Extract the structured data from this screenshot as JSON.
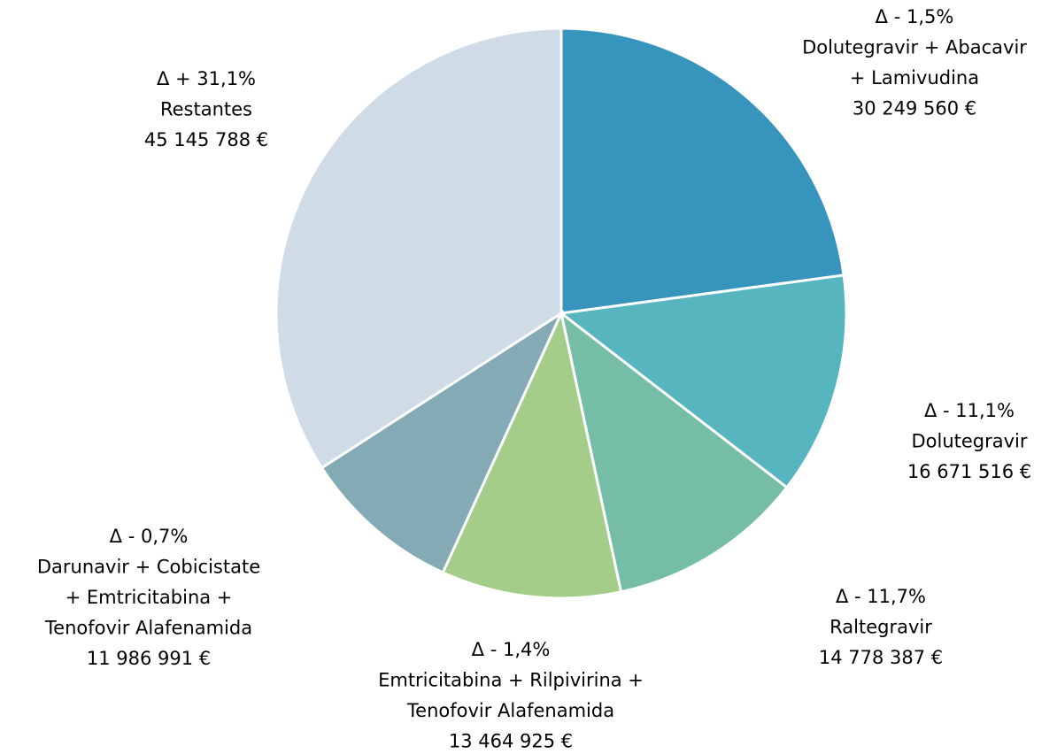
{
  "chart_data": {
    "type": "pie",
    "categories": [
      [
        "Dolutegravir + Abacavir",
        "+ Lamivudina"
      ],
      [
        "Dolutegravir"
      ],
      [
        "Raltegravir"
      ],
      [
        "Emtricitabina + Rilpivirina +",
        "Tenofovir Alafenamida"
      ],
      [
        "Darunavir + Cobicistate",
        "+ Emtricitabina +",
        "Tenofovir Alafenamida"
      ],
      [
        "Restantes"
      ]
    ],
    "values": [
      30249560,
      16671516,
      14778387,
      13464925,
      11986991,
      45145788
    ],
    "value_labels": [
      "30 249 560 €",
      "16 671 516 €",
      "14 778 387 €",
      "13 464 925 €",
      "11 986 991 €",
      "45 145 788 €"
    ],
    "change_labels": [
      "Δ - 1,5%",
      "Δ - 11,1%",
      "Δ - 11,7%",
      "Δ - 1,4%",
      "Δ - 0,7%",
      "Δ + 31,1%"
    ],
    "colors": [
      "#3795bd",
      "#57b5c0",
      "#76bda8",
      "#a3cd88",
      "#84abb5",
      "#cfdbe7"
    ]
  }
}
